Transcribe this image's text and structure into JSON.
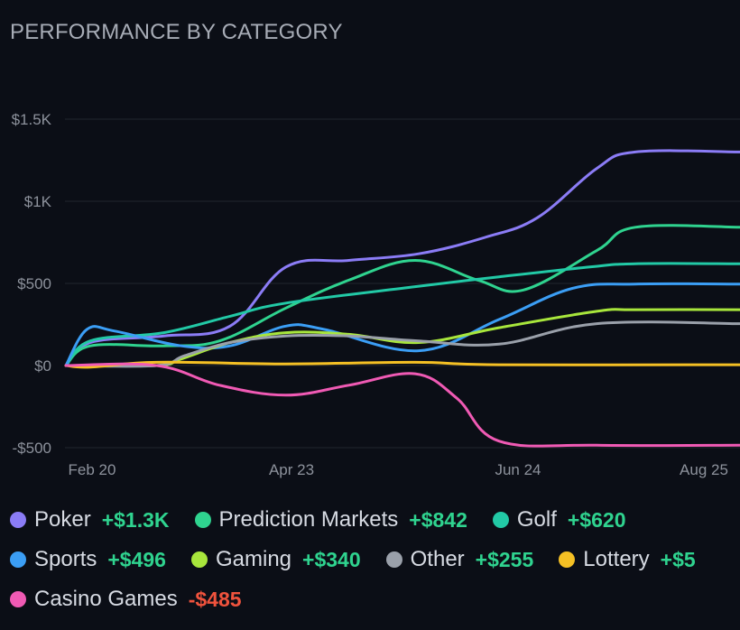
{
  "header": {
    "title": "PERFORMANCE BY CATEGORY"
  },
  "colors": {
    "background": "#0b0e16",
    "grid": "#1d212b",
    "positive": "#2fd38f",
    "negative": "#f0533d"
  },
  "chart_data": {
    "type": "line",
    "title": "PERFORMANCE BY CATEGORY",
    "xlabel": "",
    "ylabel": "",
    "x_ticks": [
      "Feb 20",
      "Apr 23",
      "Jun 24",
      "Aug 25"
    ],
    "y_ticks": [
      "$1.5K",
      "$1K",
      "$500",
      "$0",
      "-$500"
    ],
    "y_tick_values": [
      1500,
      1000,
      500,
      0,
      -500
    ],
    "xlim": [
      "2025-02-20",
      "2025-09-01"
    ],
    "ylim": [
      -500,
      1500
    ],
    "grid": "horizontal",
    "series": [
      {
        "name": "Poker",
        "color": "#8b7cf6",
        "points": [
          [
            "2025-02-20",
            0
          ],
          [
            "2025-02-27",
            140
          ],
          [
            "2025-03-20",
            180
          ],
          [
            "2025-04-08",
            240
          ],
          [
            "2025-04-24",
            600
          ],
          [
            "2025-05-12",
            640
          ],
          [
            "2025-06-01",
            680
          ],
          [
            "2025-06-20",
            780
          ],
          [
            "2025-07-05",
            900
          ],
          [
            "2025-07-22",
            1200
          ],
          [
            "2025-08-02",
            1300
          ],
          [
            "2025-09-01",
            1300
          ]
        ]
      },
      {
        "name": "Prediction Markets",
        "color": "#2fd38f",
        "points": [
          [
            "2025-02-20",
            0
          ],
          [
            "2025-02-27",
            120
          ],
          [
            "2025-03-20",
            120
          ],
          [
            "2025-04-05",
            150
          ],
          [
            "2025-04-24",
            350
          ],
          [
            "2025-05-12",
            520
          ],
          [
            "2025-05-31",
            640
          ],
          [
            "2025-06-18",
            520
          ],
          [
            "2025-07-01",
            460
          ],
          [
            "2025-07-22",
            700
          ],
          [
            "2025-08-02",
            842
          ],
          [
            "2025-09-01",
            842
          ]
        ]
      },
      {
        "name": "Golf",
        "color": "#22c9a6",
        "points": [
          [
            "2025-02-20",
            0
          ],
          [
            "2025-02-27",
            150
          ],
          [
            "2025-03-20",
            200
          ],
          [
            "2025-04-08",
            300
          ],
          [
            "2025-04-24",
            380
          ],
          [
            "2025-05-31",
            480
          ],
          [
            "2025-06-24",
            540
          ],
          [
            "2025-07-20",
            600
          ],
          [
            "2025-08-02",
            620
          ],
          [
            "2025-09-01",
            620
          ]
        ]
      },
      {
        "name": "Sports",
        "color": "#3b9ef5",
        "points": [
          [
            "2025-02-20",
            0
          ],
          [
            "2025-02-26",
            220
          ],
          [
            "2025-03-06",
            210
          ],
          [
            "2025-03-25",
            120
          ],
          [
            "2025-04-08",
            120
          ],
          [
            "2025-04-24",
            240
          ],
          [
            "2025-05-05",
            220
          ],
          [
            "2025-06-01",
            90
          ],
          [
            "2025-06-24",
            280
          ],
          [
            "2025-07-15",
            470
          ],
          [
            "2025-08-02",
            496
          ],
          [
            "2025-09-01",
            496
          ]
        ]
      },
      {
        "name": "Gaming",
        "color": "#a8e63c",
        "points": [
          [
            "2025-02-20",
            0
          ],
          [
            "2025-03-18",
            0
          ],
          [
            "2025-03-25",
            40
          ],
          [
            "2025-04-08",
            140
          ],
          [
            "2025-04-24",
            200
          ],
          [
            "2025-05-12",
            190
          ],
          [
            "2025-06-01",
            140
          ],
          [
            "2025-06-24",
            230
          ],
          [
            "2025-07-22",
            330
          ],
          [
            "2025-08-02",
            340
          ],
          [
            "2025-09-01",
            340
          ]
        ]
      },
      {
        "name": "Other",
        "color": "#9aa0aa",
        "points": [
          [
            "2025-02-20",
            0
          ],
          [
            "2025-03-18",
            0
          ],
          [
            "2025-03-26",
            60
          ],
          [
            "2025-04-08",
            140
          ],
          [
            "2025-04-24",
            180
          ],
          [
            "2025-05-12",
            180
          ],
          [
            "2025-06-01",
            150
          ],
          [
            "2025-06-24",
            130
          ],
          [
            "2025-07-22",
            255
          ],
          [
            "2025-09-01",
            255
          ]
        ]
      },
      {
        "name": "Lottery",
        "color": "#f5c024",
        "points": [
          [
            "2025-02-20",
            0
          ],
          [
            "2025-02-27",
            -10
          ],
          [
            "2025-03-18",
            20
          ],
          [
            "2025-04-24",
            10
          ],
          [
            "2025-05-31",
            20
          ],
          [
            "2025-06-24",
            5
          ],
          [
            "2025-09-01",
            5
          ]
        ]
      },
      {
        "name": "Casino Games",
        "color": "#f05ab4",
        "points": [
          [
            "2025-02-20",
            0
          ],
          [
            "2025-03-18",
            0
          ],
          [
            "2025-04-05",
            -120
          ],
          [
            "2025-04-24",
            -180
          ],
          [
            "2025-05-12",
            -120
          ],
          [
            "2025-05-31",
            -50
          ],
          [
            "2025-06-12",
            -200
          ],
          [
            "2025-06-24",
            -460
          ],
          [
            "2025-07-22",
            -485
          ],
          [
            "2025-09-01",
            -485
          ]
        ]
      }
    ]
  },
  "legend": [
    {
      "name": "Poker",
      "value": "+$1.3K",
      "color": "#8b7cf6",
      "sign": "positive"
    },
    {
      "name": "Prediction Markets",
      "value": "+$842",
      "color": "#2fd38f",
      "sign": "positive"
    },
    {
      "name": "Golf",
      "value": "+$620",
      "color": "#22c9a6",
      "sign": "positive"
    },
    {
      "name": "Sports",
      "value": "+$496",
      "color": "#3b9ef5",
      "sign": "positive"
    },
    {
      "name": "Gaming",
      "value": "+$340",
      "color": "#a8e63c",
      "sign": "positive"
    },
    {
      "name": "Other",
      "value": "+$255",
      "color": "#9aa0aa",
      "sign": "positive"
    },
    {
      "name": "Lottery",
      "value": "+$5",
      "color": "#f5c024",
      "sign": "positive"
    },
    {
      "name": "Casino Games",
      "value": "-$485",
      "color": "#f05ab4",
      "sign": "negative"
    }
  ]
}
